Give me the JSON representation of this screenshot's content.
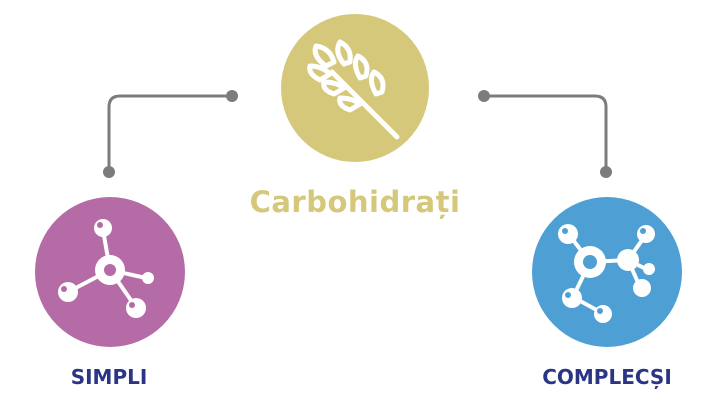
{
  "diagram": {
    "title": "Carbohidrați",
    "left_label": "SIMPLI",
    "right_label": "COMPLECȘI"
  },
  "colors": {
    "top_circle": "#D6C87A",
    "title_text": "#D6C87A",
    "left_circle": "#B46BA6",
    "right_circle": "#4E9FD3",
    "label_text": "#2B3585",
    "connector": "#7C7C7C",
    "icon": "#FFFFFF"
  },
  "icons": {
    "top": "wheat-icon",
    "left": "simple-molecule-icon",
    "right": "complex-molecule-icon"
  }
}
